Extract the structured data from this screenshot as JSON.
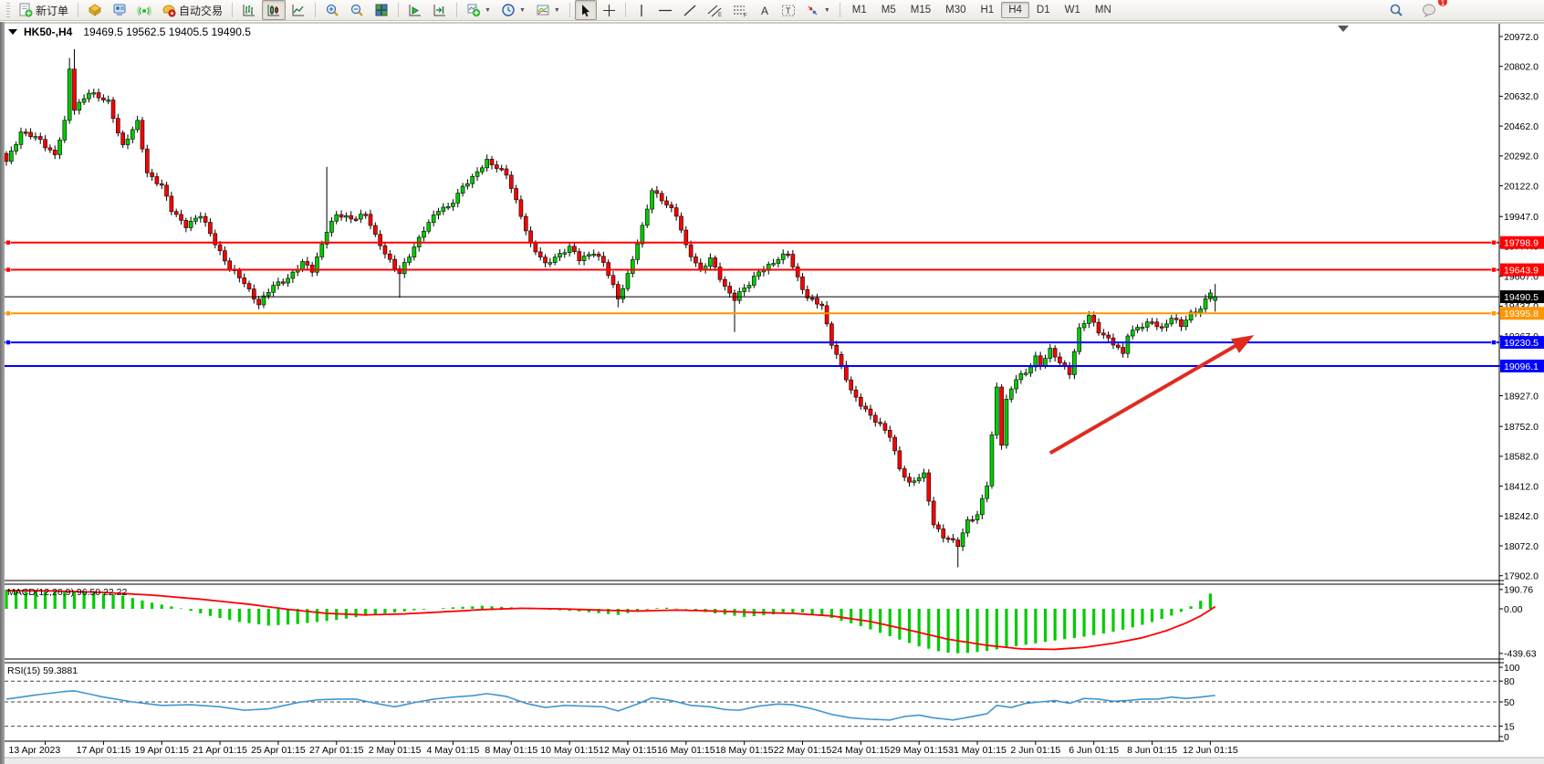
{
  "toolbar": {
    "new_order_label": "新订单",
    "autotrading_label": "自动交易",
    "timeframes": [
      "M1",
      "M5",
      "M15",
      "M30",
      "H1",
      "H4",
      "D1",
      "W1",
      "MN"
    ],
    "active_timeframe": "H4",
    "notification_count": "1"
  },
  "chart": {
    "symbol": "HK50-,H4",
    "quote": "19469.5 19562.5 19405.5 19490.5"
  },
  "chart_data": {
    "type": "candlestick",
    "symbol": "HK50",
    "timeframe": "H4",
    "title": "HK50-,H4  19469.5 19562.5 19405.5 19490.5",
    "current_bar": {
      "open": 19469.5,
      "high": 19562.5,
      "low": 19405.5,
      "close": 19490.5
    },
    "y_ticks": [
      20972.0,
      20802.0,
      20632.0,
      20462.0,
      20292.0,
      20122.0,
      19947.0,
      19777.0,
      19607.0,
      19437.0,
      19267.0,
      19097.0,
      18927.0,
      18752.0,
      18582.0,
      18412.0,
      18242.0,
      18072.0,
      17902.0
    ],
    "y_range": [
      17902.0,
      20972.0
    ],
    "x_labels": [
      "13 Apr 2023",
      "17 Apr 01:15",
      "19 Apr 01:15",
      "21 Apr 01:15",
      "25 Apr 01:15",
      "27 Apr 01:15",
      "2 May 01:15",
      "4 May 01:15",
      "8 May 01:15",
      "10 May 01:15",
      "12 May 01:15",
      "16 May 01:15",
      "18 May 01:15",
      "22 May 01:15",
      "24 May 01:15",
      "29 May 01:15",
      "31 May 01:15",
      "2 Jun 01:15",
      "6 Jun 01:15",
      "8 Jun 01:15",
      "12 Jun 01:15"
    ],
    "x_tick_first_index": 8,
    "x_tick_step": 12,
    "n_candles": 250,
    "grid": "off",
    "colors": {
      "up": "#00CC00",
      "down": "#FF0000",
      "wick": "#000000",
      "bg": "#FFFFFF"
    },
    "close_anchors": [
      [
        0,
        20260
      ],
      [
        3,
        20430
      ],
      [
        7,
        20380
      ],
      [
        10,
        20300
      ],
      [
        12,
        20480
      ],
      [
        13,
        20780
      ],
      [
        14,
        20560
      ],
      [
        17,
        20660
      ],
      [
        19,
        20620
      ],
      [
        21,
        20600
      ],
      [
        24,
        20350
      ],
      [
        27,
        20480
      ],
      [
        29,
        20200
      ],
      [
        32,
        20120
      ],
      [
        34,
        19980
      ],
      [
        37,
        19900
      ],
      [
        40,
        19950
      ],
      [
        43,
        19800
      ],
      [
        46,
        19650
      ],
      [
        49,
        19570
      ],
      [
        52,
        19450
      ],
      [
        55,
        19550
      ],
      [
        58,
        19600
      ],
      [
        61,
        19680
      ],
      [
        63,
        19640
      ],
      [
        66,
        19870
      ],
      [
        68,
        19950
      ],
      [
        71,
        19940
      ],
      [
        74,
        19960
      ],
      [
        76,
        19830
      ],
      [
        79,
        19700
      ],
      [
        81,
        19620
      ],
      [
        83,
        19720
      ],
      [
        86,
        19880
      ],
      [
        89,
        19980
      ],
      [
        91,
        20000
      ],
      [
        94,
        20120
      ],
      [
        96,
        20160
      ],
      [
        99,
        20270
      ],
      [
        101,
        20230
      ],
      [
        103,
        20180
      ],
      [
        106,
        19960
      ],
      [
        108,
        19790
      ],
      [
        111,
        19670
      ],
      [
        113,
        19720
      ],
      [
        116,
        19770
      ],
      [
        118,
        19700
      ],
      [
        121,
        19750
      ],
      [
        123,
        19680
      ],
      [
        126,
        19480
      ],
      [
        128,
        19620
      ],
      [
        131,
        19880
      ],
      [
        133,
        20100
      ],
      [
        135,
        20050
      ],
      [
        138,
        19950
      ],
      [
        140,
        19780
      ],
      [
        143,
        19640
      ],
      [
        145,
        19700
      ],
      [
        148,
        19550
      ],
      [
        150,
        19480
      ],
      [
        153,
        19560
      ],
      [
        155,
        19640
      ],
      [
        158,
        19680
      ],
      [
        161,
        19740
      ],
      [
        163,
        19600
      ],
      [
        165,
        19480
      ],
      [
        168,
        19440
      ],
      [
        170,
        19230
      ],
      [
        172,
        19090
      ],
      [
        174,
        18950
      ],
      [
        177,
        18850
      ],
      [
        179,
        18780
      ],
      [
        182,
        18700
      ],
      [
        184,
        18520
      ],
      [
        186,
        18420
      ],
      [
        189,
        18480
      ],
      [
        191,
        18200
      ],
      [
        193,
        18120
      ],
      [
        196,
        18080
      ],
      [
        198,
        18220
      ],
      [
        200,
        18240
      ],
      [
        202,
        18420
      ],
      [
        204,
        18980
      ],
      [
        205,
        18660
      ],
      [
        206,
        18900
      ],
      [
        208,
        19020
      ],
      [
        210,
        19060
      ],
      [
        212,
        19150
      ],
      [
        213,
        19100
      ],
      [
        215,
        19180
      ],
      [
        217,
        19120
      ],
      [
        219,
        19060
      ],
      [
        221,
        19300
      ],
      [
        223,
        19380
      ],
      [
        225,
        19300
      ],
      [
        227,
        19250
      ],
      [
        230,
        19160
      ],
      [
        231,
        19280
      ],
      [
        233,
        19320
      ],
      [
        236,
        19340
      ],
      [
        238,
        19310
      ],
      [
        240,
        19380
      ],
      [
        242,
        19320
      ],
      [
        244,
        19390
      ],
      [
        246,
        19430
      ],
      [
        248,
        19520
      ],
      [
        249,
        19490.5
      ]
    ],
    "overrides": {
      "13": {
        "high": 20850
      },
      "14": {
        "high": 20900
      },
      "66": {
        "high": 20230
      },
      "81": {
        "low": 19485
      },
      "99": {
        "high": 20300
      },
      "126": {
        "low": 19430
      },
      "150": {
        "low": 19290
      },
      "196": {
        "low": 17950
      },
      "249": {
        "open": 19469.5,
        "high": 19562.5,
        "low": 19405.5,
        "close": 19490.5
      }
    },
    "horizontal_lines": [
      {
        "price": 19798.9,
        "label": "19798.9",
        "color": "#FF0000",
        "width": 2,
        "handles": true
      },
      {
        "price": 19643.9,
        "label": "19643.9",
        "color": "#FF0000",
        "width": 2,
        "handles": true
      },
      {
        "price": 19490.5,
        "label": "19490.5",
        "color": "#000000",
        "width": 1,
        "handles": false,
        "role": "bid-price-line"
      },
      {
        "price": 19395.8,
        "label": "19395.8",
        "color": "#FF9500",
        "width": 2,
        "handles": true
      },
      {
        "price": 19230.5,
        "label": "19230.5",
        "color": "#0000FF",
        "width": 2,
        "handles": true
      },
      {
        "price": 19096.1,
        "label": "19096.1",
        "color": "#0000FF",
        "width": 2,
        "handles": false
      }
    ],
    "trend_arrow": {
      "x1_index": 215,
      "price1": 18600,
      "x2_index": 257,
      "price2": 19272,
      "color": "#E02B20"
    },
    "macd": {
      "label": "MACD(12,26,9) 96.50 22.22",
      "params": "12,26,9",
      "value": 96.5,
      "signal_value": 22.22,
      "y_ticks": [
        190.76,
        0.0,
        -439.63
      ],
      "hist_color": "#00CC00",
      "signal_color": "#FF0000",
      "hist_anchors": [
        [
          0,
          190
        ],
        [
          8,
          182
        ],
        [
          16,
          165
        ],
        [
          24,
          130
        ],
        [
          30,
          60
        ],
        [
          36,
          5
        ],
        [
          42,
          -70
        ],
        [
          48,
          -130
        ],
        [
          54,
          -165
        ],
        [
          60,
          -150
        ],
        [
          68,
          -110
        ],
        [
          76,
          -55
        ],
        [
          84,
          -15
        ],
        [
          92,
          15
        ],
        [
          98,
          30
        ],
        [
          104,
          15
        ],
        [
          110,
          -5
        ],
        [
          118,
          -25
        ],
        [
          126,
          -60
        ],
        [
          131,
          -15
        ],
        [
          135,
          15
        ],
        [
          140,
          -5
        ],
        [
          146,
          -45
        ],
        [
          152,
          -80
        ],
        [
          158,
          -55
        ],
        [
          164,
          -35
        ],
        [
          170,
          -90
        ],
        [
          176,
          -170
        ],
        [
          182,
          -270
        ],
        [
          188,
          -370
        ],
        [
          193,
          -430
        ],
        [
          197,
          -440
        ],
        [
          202,
          -415
        ],
        [
          207,
          -375
        ],
        [
          212,
          -340
        ],
        [
          217,
          -305
        ],
        [
          222,
          -275
        ],
        [
          227,
          -235
        ],
        [
          231,
          -195
        ],
        [
          235,
          -145
        ],
        [
          239,
          -85
        ],
        [
          242,
          -30
        ],
        [
          244,
          25
        ],
        [
          246,
          80
        ],
        [
          248,
          150
        ],
        [
          249,
          96.5
        ]
      ],
      "signal_anchors": [
        [
          0,
          180
        ],
        [
          10,
          176
        ],
        [
          20,
          162
        ],
        [
          30,
          135
        ],
        [
          40,
          95
        ],
        [
          50,
          45
        ],
        [
          58,
          -5
        ],
        [
          66,
          -45
        ],
        [
          74,
          -60
        ],
        [
          82,
          -50
        ],
        [
          90,
          -30
        ],
        [
          98,
          -8
        ],
        [
          106,
          5
        ],
        [
          114,
          0
        ],
        [
          122,
          -12
        ],
        [
          130,
          -22
        ],
        [
          138,
          -12
        ],
        [
          146,
          -22
        ],
        [
          154,
          -35
        ],
        [
          162,
          -45
        ],
        [
          170,
          -70
        ],
        [
          178,
          -125
        ],
        [
          186,
          -210
        ],
        [
          194,
          -300
        ],
        [
          202,
          -360
        ],
        [
          209,
          -395
        ],
        [
          216,
          -400
        ],
        [
          222,
          -380
        ],
        [
          228,
          -340
        ],
        [
          234,
          -285
        ],
        [
          239,
          -215
        ],
        [
          243,
          -140
        ],
        [
          246,
          -70
        ],
        [
          248,
          -10
        ],
        [
          249,
          22.2
        ]
      ]
    },
    "rsi": {
      "label": "RSI(15) 59.3881",
      "period": 15,
      "value": 59.3881,
      "y_ticks": [
        100,
        80,
        50,
        15,
        0
      ],
      "levels": [
        80,
        50,
        15
      ],
      "line_color": "#3E96D2",
      "anchors": [
        [
          0,
          54
        ],
        [
          6,
          60
        ],
        [
          12,
          65
        ],
        [
          14,
          66
        ],
        [
          20,
          57
        ],
        [
          26,
          50
        ],
        [
          32,
          45
        ],
        [
          38,
          46
        ],
        [
          44,
          43
        ],
        [
          49,
          38
        ],
        [
          54,
          40
        ],
        [
          60,
          49
        ],
        [
          64,
          53
        ],
        [
          68,
          54
        ],
        [
          72,
          54
        ],
        [
          76,
          48
        ],
        [
          80,
          43
        ],
        [
          84,
          49
        ],
        [
          88,
          54
        ],
        [
          92,
          57
        ],
        [
          96,
          59
        ],
        [
          99,
          62
        ],
        [
          103,
          58
        ],
        [
          107,
          48
        ],
        [
          111,
          42
        ],
        [
          115,
          45
        ],
        [
          119,
          44
        ],
        [
          123,
          43
        ],
        [
          126,
          37
        ],
        [
          130,
          47
        ],
        [
          133,
          56
        ],
        [
          137,
          52
        ],
        [
          141,
          45
        ],
        [
          145,
          43
        ],
        [
          148,
          39
        ],
        [
          151,
          38
        ],
        [
          155,
          44
        ],
        [
          159,
          47
        ],
        [
          162,
          46
        ],
        [
          166,
          40
        ],
        [
          170,
          32
        ],
        [
          174,
          27
        ],
        [
          178,
          25
        ],
        [
          182,
          24
        ],
        [
          185,
          29
        ],
        [
          188,
          31
        ],
        [
          191,
          27
        ],
        [
          195,
          24
        ],
        [
          199,
          29
        ],
        [
          202,
          33
        ],
        [
          204,
          45
        ],
        [
          207,
          42
        ],
        [
          210,
          48
        ],
        [
          213,
          50
        ],
        [
          216,
          52
        ],
        [
          219,
          48
        ],
        [
          222,
          55
        ],
        [
          225,
          54
        ],
        [
          228,
          51
        ],
        [
          231,
          52
        ],
        [
          234,
          54
        ],
        [
          237,
          54
        ],
        [
          240,
          57
        ],
        [
          243,
          55
        ],
        [
          246,
          57
        ],
        [
          249,
          59.39
        ]
      ]
    }
  }
}
